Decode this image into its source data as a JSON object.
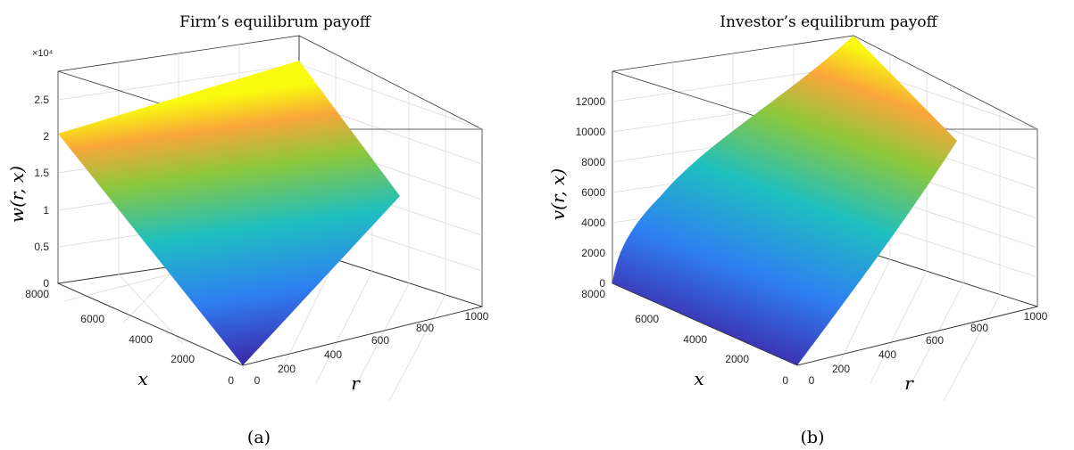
{
  "figure": {
    "panel_a_caption": "(a)",
    "panel_b_caption": "(b)"
  },
  "chart_data": [
    {
      "type": "surface",
      "title": "Firm’s equilibrum payoff",
      "xlabel": "r",
      "ylabel": "x",
      "zlabel": "w(r, x)",
      "z_exponent_label": "×10⁴",
      "x_ticks": [
        "0",
        "200",
        "400",
        "600",
        "800",
        "1000"
      ],
      "y_ticks": [
        "0",
        "2000",
        "4000",
        "6000",
        "8000"
      ],
      "z_ticks": [
        "0",
        "0.5",
        "1",
        "1.5",
        "2",
        "2.5"
      ],
      "xlim": [
        0,
        1000
      ],
      "ylim": [
        0,
        8000
      ],
      "zlim": [
        0,
        25000
      ],
      "grid": true,
      "colormap": "parula",
      "corner_values": [
        {
          "r": 0,
          "x": 0,
          "z": 0
        },
        {
          "r": 1000,
          "x": 0,
          "z": 9500
        },
        {
          "r": 0,
          "x": 7000,
          "z": 21500
        },
        {
          "r": 1000,
          "x": 7000,
          "z": 25000
        }
      ]
    },
    {
      "type": "surface",
      "title": "Investor’s equilibrum payoff",
      "xlabel": "r",
      "ylabel": "x",
      "zlabel": "v(r, x)",
      "x_ticks": [
        "0",
        "200",
        "400",
        "600",
        "800",
        "1000"
      ],
      "y_ticks": [
        "0",
        "2000",
        "4000",
        "6000",
        "8000"
      ],
      "z_ticks": [
        "0",
        "2000",
        "4000",
        "6000",
        "8000",
        "10000",
        "12000"
      ],
      "xlim": [
        0,
        1000
      ],
      "ylim": [
        0,
        8000
      ],
      "zlim": [
        0,
        12000
      ],
      "grid": true,
      "colormap": "parula",
      "corner_values": [
        {
          "r": 0,
          "x": 0,
          "z": 0
        },
        {
          "r": 1000,
          "x": 0,
          "z": 9000
        },
        {
          "r": 0,
          "x": 7000,
          "z": 0
        },
        {
          "r": 1000,
          "x": 7000,
          "z": 12000
        }
      ]
    }
  ]
}
